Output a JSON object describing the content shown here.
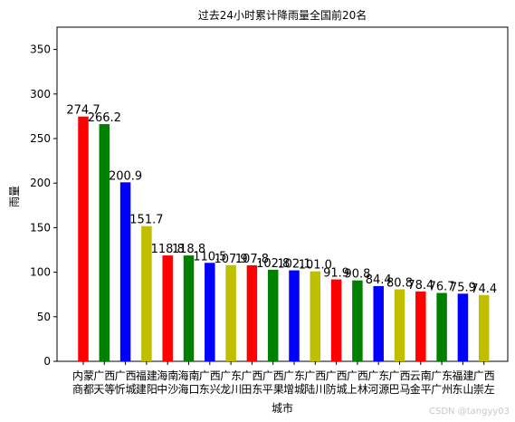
{
  "chart_data": {
    "type": "bar",
    "title": "过去24小时累计降雨量全国前20名",
    "xlabel": "城市",
    "ylabel": "雨量",
    "ylim": [
      0,
      375
    ],
    "yticks": [
      0,
      50,
      100,
      150,
      200,
      250,
      300,
      350
    ],
    "grid": false,
    "categories": [
      [
        "内蒙",
        "商都"
      ],
      [
        "广西",
        "天等"
      ],
      [
        "广西",
        "忻城"
      ],
      [
        "福建",
        "建阳"
      ],
      [
        "海南",
        "中沙"
      ],
      [
        "海南",
        "海口"
      ],
      [
        "广西",
        "东兴"
      ],
      [
        "广东",
        "龙川"
      ],
      [
        "广西",
        "田东"
      ],
      [
        "广西",
        "平果"
      ],
      [
        "广东",
        "增城"
      ],
      [
        "广西",
        "陆川"
      ],
      [
        "广西",
        "防城"
      ],
      [
        "广西",
        "上林"
      ],
      [
        "广东",
        "河源"
      ],
      [
        "广西",
        "巴马"
      ],
      [
        "云南",
        "金平"
      ],
      [
        "广东",
        "广州"
      ],
      [
        "福建",
        "东山"
      ],
      [
        "广西",
        "崇左"
      ]
    ],
    "values": [
      274.7,
      266.2,
      200.9,
      151.7,
      118.8,
      118.8,
      110.5,
      107.9,
      107.8,
      102.8,
      102.1,
      101.0,
      91.9,
      90.8,
      84.4,
      80.8,
      78.4,
      76.7,
      75.9,
      74.4
    ],
    "data_labels": [
      "274.7",
      "266.2",
      "200.9",
      "151.7",
      "118.8",
      "118.8",
      "110.5",
      "107.9",
      "107.8",
      "102.8",
      "102.1",
      "101.0",
      "91.9",
      "90.8",
      "84.4",
      "80.8",
      "78.4",
      "76.7",
      "75.9",
      "74.4"
    ],
    "bar_colors": [
      "#ff0000",
      "#008000",
      "#0000ff",
      "#bfbf00"
    ]
  },
  "watermark": "CSDN @tangyy03"
}
